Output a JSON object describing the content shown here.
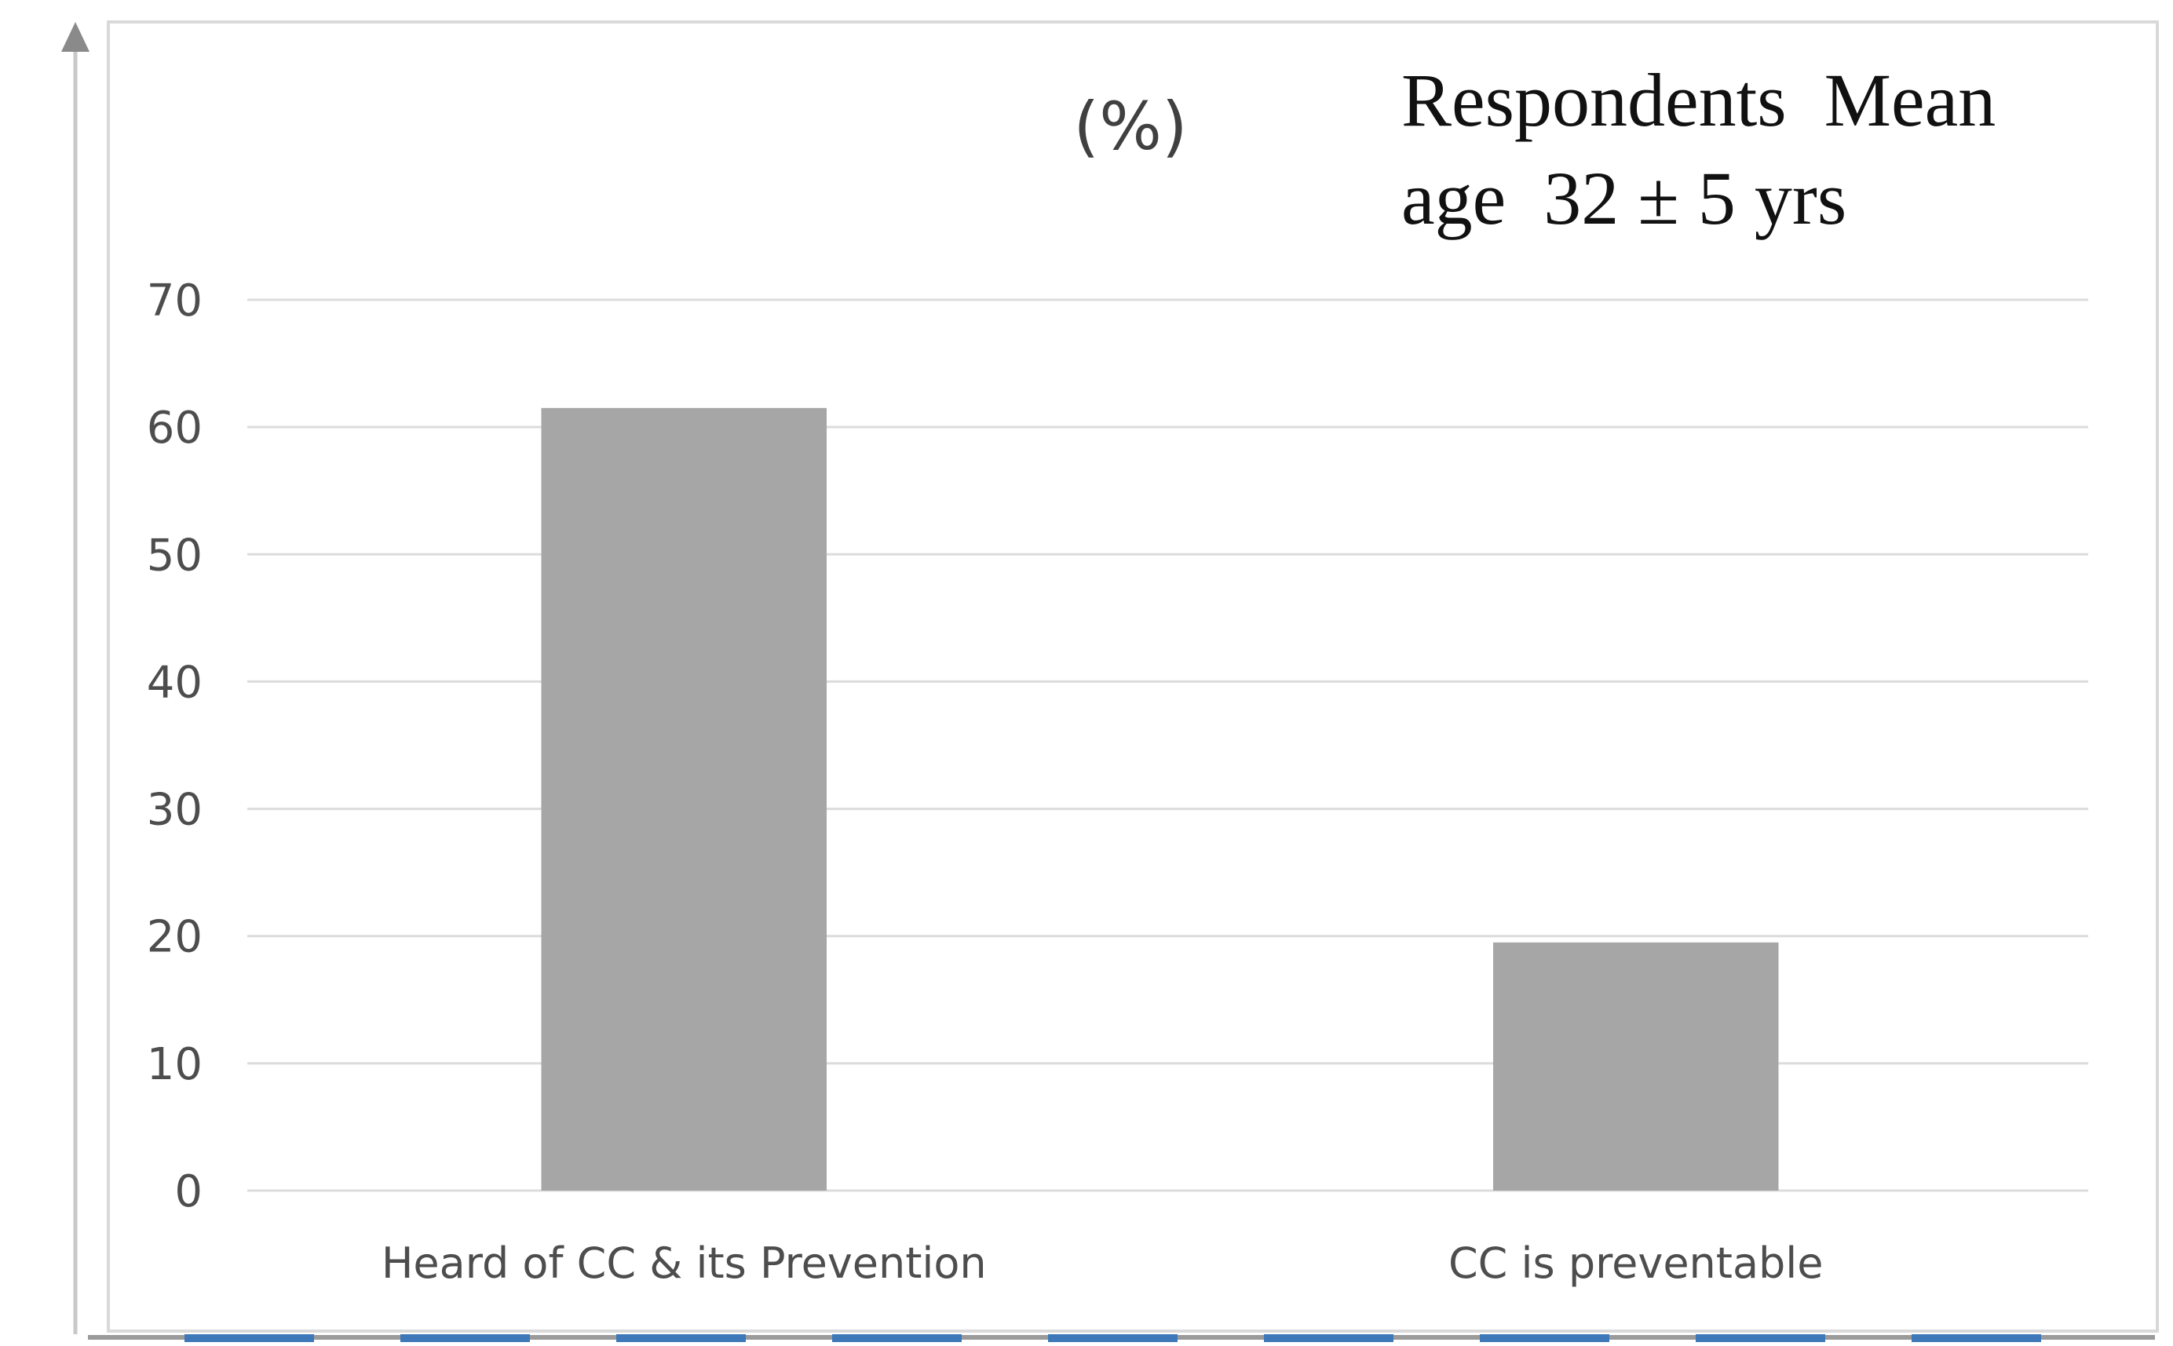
{
  "colors": {
    "bar": "#a6a6a6",
    "gridline": "#dcdcdc",
    "tick_text": "#4d4d4d",
    "frame": "#d9d9d9",
    "bottom_strip": "#3e78b8"
  },
  "chart_data": {
    "type": "bar",
    "title": "",
    "unit_label": "(%)",
    "annotation_lines": [
      "Respondents  Mean",
      "age  32 ± 5 yrs"
    ],
    "xlabel": "",
    "ylabel": "",
    "categories": [
      "Heard of CC & its Prevention",
      "CC is preventable"
    ],
    "values": [
      61.5,
      19.5
    ],
    "ylim": [
      0,
      70
    ],
    "yticks": [
      0,
      10,
      20,
      30,
      40,
      50,
      60,
      70
    ],
    "grid": true,
    "legend": "none"
  }
}
